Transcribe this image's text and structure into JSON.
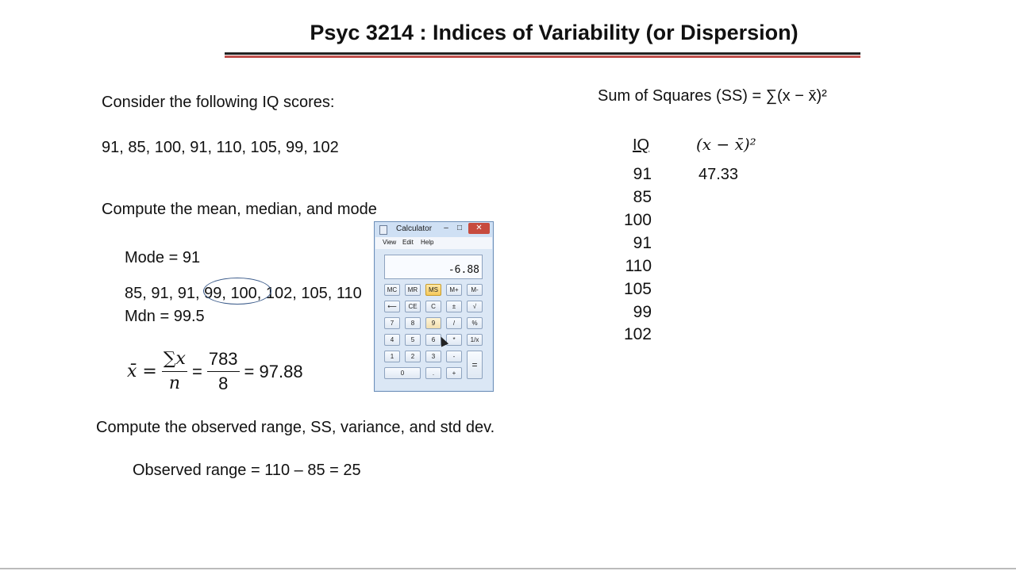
{
  "slide": {
    "title": "Psyc 3214 : Indices of Variability (or Dispersion)",
    "consider": "Consider the following IQ scores:",
    "scores": "91,  85,  100,  91,  110,  105,  99,  102",
    "compute1": "Compute the mean, median, and mode",
    "mode": "Mode = 91",
    "sorted": "85, 91, 91, 99, 100, 102, 105, 110",
    "median": "Mdn = 99.5",
    "mean_formula": {
      "lhs": "x̄ =",
      "frac1_top": "∑x",
      "frac1_bot": "n",
      "eq2": "=",
      "frac2_top": "783",
      "frac2_bot": "8",
      "result": "= 97.88"
    },
    "compute2": "Compute the observed range, SS, variance, and std dev.",
    "range": "Observed range = 110 – 85 = 25",
    "ss_formula": "Sum of Squares (SS) = ∑(x − x̄)²",
    "table": {
      "col1_header": "IQ",
      "col2_header": "(x − x̄)²",
      "iq_values": [
        "91",
        "85",
        "100",
        "91",
        "110",
        "105",
        "99",
        "102"
      ],
      "squared_values": [
        "47.33"
      ]
    }
  },
  "calculator": {
    "title": "Calculator",
    "minimize": "–",
    "maximize": "□",
    "close": "✕",
    "menu": [
      "View",
      "Edit",
      "Help"
    ],
    "display": "-6.88",
    "keys": {
      "mc": "MC",
      "mr": "MR",
      "ms": "MS",
      "mplus": "M+",
      "mminus": "M-",
      "back": "⟵",
      "ce": "CE",
      "c": "C",
      "pm": "±",
      "sqrt": "√",
      "k7": "7",
      "k8": "8",
      "k9": "9",
      "div": "/",
      "pct": "%",
      "k4": "4",
      "k5": "5",
      "k6": "6",
      "mul": "*",
      "recip": "1/x",
      "k1": "1",
      "k2": "2",
      "k3": "3",
      "minus": "-",
      "equals": "=",
      "k0": "0",
      "dot": ".",
      "plus": "+"
    }
  }
}
